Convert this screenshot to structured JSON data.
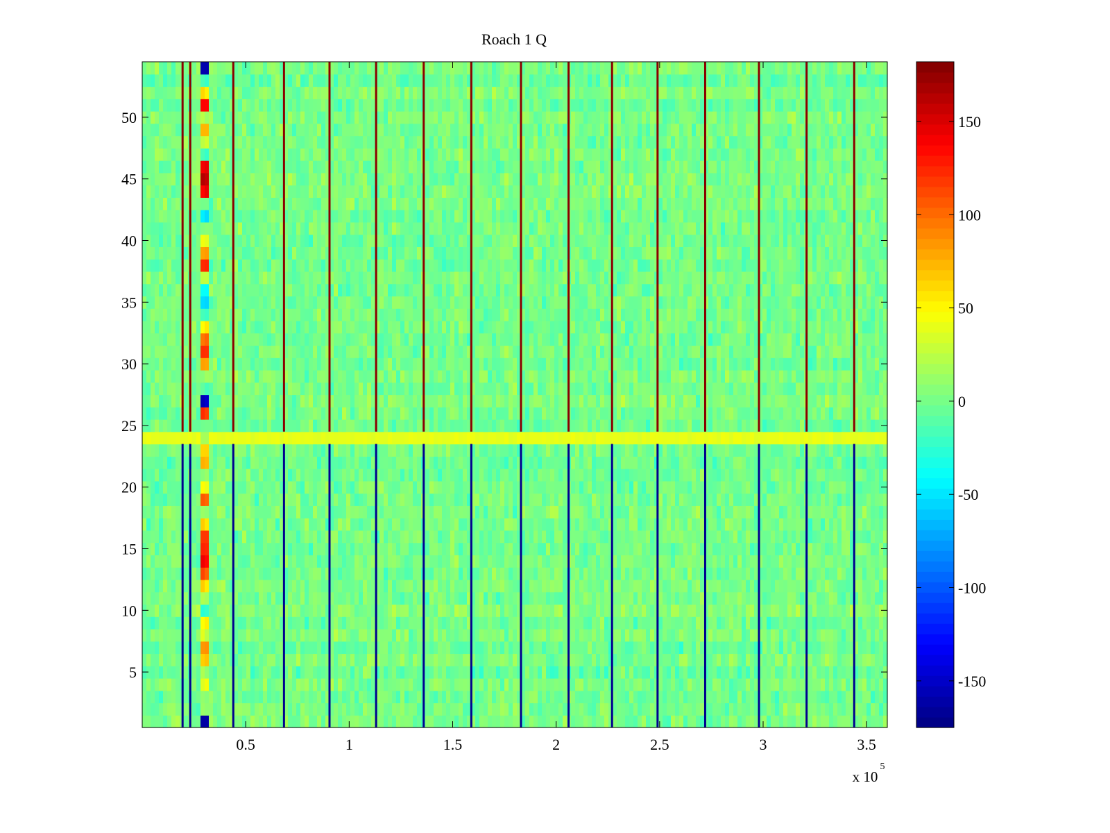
{
  "chart_data": {
    "type": "heatmap",
    "title": "Roach 1 Q",
    "xlabel": "",
    "ylabel": "",
    "x_multiplier": "x 10",
    "x_multiplier_exponent": "5",
    "xlim": [
      0,
      3.6
    ],
    "ylim": [
      0.5,
      54.5
    ],
    "x_ticks": [
      0.5,
      1,
      1.5,
      2,
      2.5,
      3,
      3.5
    ],
    "x_tick_labels": [
      "0.5",
      "1",
      "1.5",
      "2",
      "2.5",
      "3",
      "3.5"
    ],
    "y_ticks": [
      5,
      10,
      15,
      20,
      25,
      30,
      35,
      40,
      45,
      50
    ],
    "y_tick_labels": [
      "5",
      "10",
      "15",
      "20",
      "25",
      "30",
      "35",
      "40",
      "45",
      "50"
    ],
    "rows": 54,
    "background_level": 0,
    "noise_amplitude": 25,
    "anomaly_columns_x": [
      0.29,
      0.33
    ],
    "anomaly_column_values": [
      -160,
      10,
      10,
      40,
      10,
      70,
      90,
      30,
      50,
      -20,
      20,
      60,
      110,
      140,
      130,
      120,
      60,
      10,
      100,
      40,
      10,
      70,
      60,
      20,
      0,
      120,
      -150,
      -10,
      10,
      80,
      120,
      100,
      50,
      -20,
      -50,
      -40,
      20,
      120,
      80,
      40,
      10,
      -50,
      0,
      140,
      160,
      140,
      -20,
      30,
      80,
      20,
      140,
      60,
      -20,
      -160
    ],
    "vertical_lines_x": [
      0.195,
      0.232,
      0.44,
      0.685,
      0.905,
      1.13,
      1.36,
      1.59,
      1.83,
      2.06,
      2.27,
      2.49,
      2.72,
      2.98,
      3.21,
      3.44
    ],
    "vertical_line_color_top": "#8a0000",
    "vertical_line_color_bottom": "#00008f",
    "horizontal_band_row": 24,
    "horizontal_band_value": 40,
    "colorbar": {
      "colormap": "jet",
      "range": [
        -175,
        182
      ],
      "ticks": [
        -150,
        -100,
        -50,
        0,
        50,
        100,
        150
      ],
      "tick_labels": [
        "-150",
        "-100",
        "-50",
        "0",
        "50",
        "100",
        "150"
      ]
    }
  }
}
